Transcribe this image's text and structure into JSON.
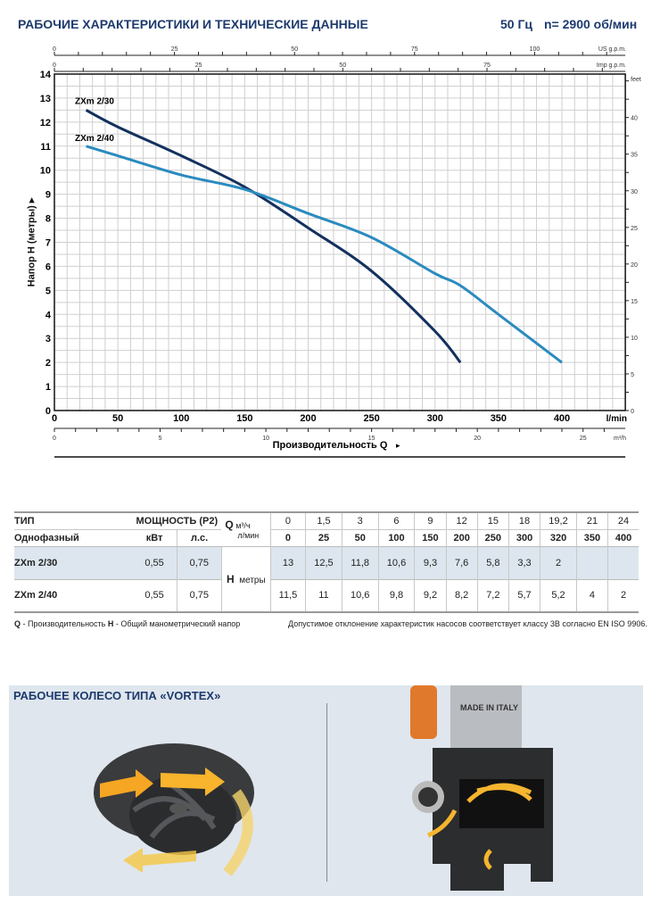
{
  "header": {
    "title": "РАБОЧИЕ ХАРАКТЕРИСТИКИ И ТЕХНИЧЕСКИЕ ДАННЫЕ",
    "freq": "50 Гц",
    "rpm": "n= 2900 об/мин"
  },
  "chart_data": {
    "type": "line",
    "xlabel": "Производительность Q",
    "ylabel": "Напор H (метры)",
    "x_unit": "l/min",
    "y_unit": "",
    "xlim": [
      0,
      450
    ],
    "ylim": [
      0,
      14
    ],
    "x_ticks": [
      0,
      50,
      100,
      150,
      200,
      250,
      300,
      350,
      400
    ],
    "y_ticks": [
      0,
      1,
      2,
      3,
      4,
      5,
      6,
      7,
      8,
      9,
      10,
      11,
      12,
      13,
      14
    ],
    "grid": true,
    "secondary_axes": {
      "us_gpm": {
        "label": "US g.p.m.",
        "ticks": [
          0,
          25,
          50,
          75,
          100
        ]
      },
      "imp_gpm": {
        "label": "Imp g.p.m.",
        "ticks": [
          0,
          25,
          50,
          75
        ]
      },
      "m3h": {
        "label": "m³/h",
        "ticks": [
          0,
          5,
          10,
          15,
          20,
          25
        ]
      },
      "feet": {
        "label": "feet",
        "ticks": [
          0,
          5,
          10,
          15,
          20,
          25,
          30,
          35,
          40
        ]
      }
    },
    "series": [
      {
        "name": "ZXm 2/30",
        "color": "#13315f",
        "x": [
          25,
          50,
          100,
          150,
          200,
          250,
          300,
          320
        ],
        "y": [
          12.5,
          11.8,
          10.6,
          9.3,
          7.6,
          5.8,
          3.3,
          2
        ]
      },
      {
        "name": "ZXm 2/40",
        "color": "#2a8bbf",
        "x": [
          25,
          50,
          100,
          150,
          200,
          250,
          300,
          320,
          350,
          400
        ],
        "y": [
          11,
          10.6,
          9.8,
          9.2,
          8.2,
          7.2,
          5.7,
          5.2,
          4,
          2
        ]
      }
    ]
  },
  "table": {
    "type_label": "ТИП",
    "phase_label": "Однофазный",
    "power_label": "МОЩНОСТЬ (P2)",
    "kw": "кВт",
    "hp": "л.с.",
    "q_label": "Q",
    "q_unit1": "м³/ч",
    "q_unit2": "л/мин",
    "h_label": "H",
    "h_unit": "метры",
    "m3h": [
      "0",
      "1,5",
      "3",
      "6",
      "9",
      "12",
      "15",
      "18",
      "19,2",
      "21",
      "24"
    ],
    "lmin": [
      "0",
      "25",
      "50",
      "100",
      "150",
      "200",
      "250",
      "300",
      "320",
      "350",
      "400"
    ],
    "rows": [
      {
        "model": "ZXm 2/30",
        "kw": "0,55",
        "hp": "0,75",
        "h": [
          "13",
          "12,5",
          "11,8",
          "10,6",
          "9,3",
          "7,6",
          "5,8",
          "3,3",
          "2",
          "",
          ""
        ]
      },
      {
        "model": "ZXm 2/40",
        "kw": "0,55",
        "hp": "0,75",
        "h": [
          "11,5",
          "11",
          "10,6",
          "9,8",
          "9,2",
          "8,2",
          "7,2",
          "5,7",
          "5,2",
          "4",
          "2"
        ]
      }
    ]
  },
  "footnotes": {
    "q": "Q",
    "q_text": " - Производительность  ",
    "h": "H",
    "h_text": " - Общий манометрический напор",
    "tolerance": "Допустимое отклонение характеристик насосов соответствует классу 3B согласно EN ISO 9906."
  },
  "vortex": {
    "title": "РАБОЧЕЕ КОЛЕСО ТИПА «VORTEX»",
    "pump_label": "MADE IN ITALY"
  }
}
